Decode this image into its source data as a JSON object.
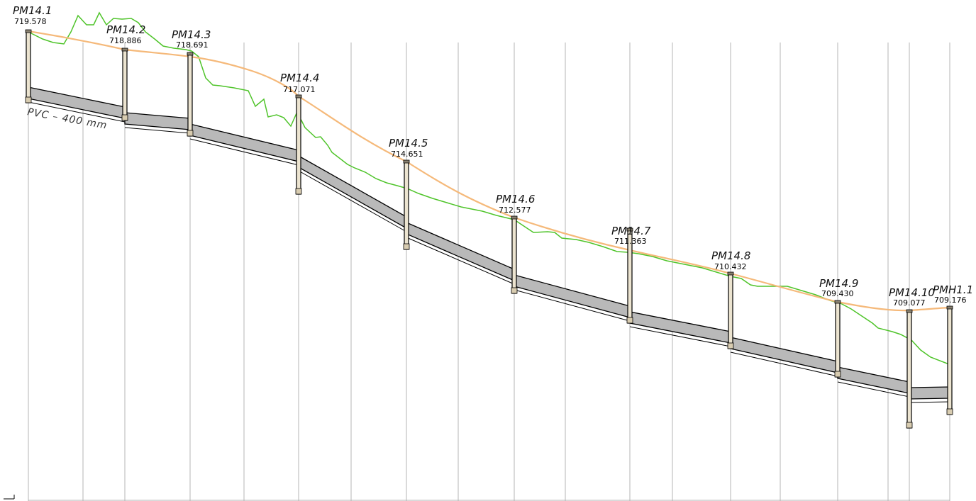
{
  "profile": {
    "pipe_label": "PVC  –  400  mm",
    "colors": {
      "finished_grade": "#f5b97a",
      "existing_ground": "#4fc42a",
      "pipe_fill": "#b9b9b9",
      "pipe_edge": "#000000",
      "manhole_fill": "#ece4d0",
      "grid": "#b4b4b4"
    },
    "manholes": [
      {
        "name": "PM14.1",
        "rim": "719.578"
      },
      {
        "name": "PM14.2",
        "rim": "718.886"
      },
      {
        "name": "PM14.3",
        "rim": "718.691"
      },
      {
        "name": "PM14.4",
        "rim": "717.071"
      },
      {
        "name": "PM14.5",
        "rim": "714.651"
      },
      {
        "name": "PM14.6",
        "rim": "712.577"
      },
      {
        "name": "PM14.7",
        "rim": "711.363"
      },
      {
        "name": "PM14.8",
        "rim": "710.432"
      },
      {
        "name": "PM14.9",
        "rim": "709.430"
      },
      {
        "name": "PM14.10",
        "rim": "709.077"
      },
      {
        "name": "PMH1.1",
        "rim": "709.176"
      }
    ]
  }
}
